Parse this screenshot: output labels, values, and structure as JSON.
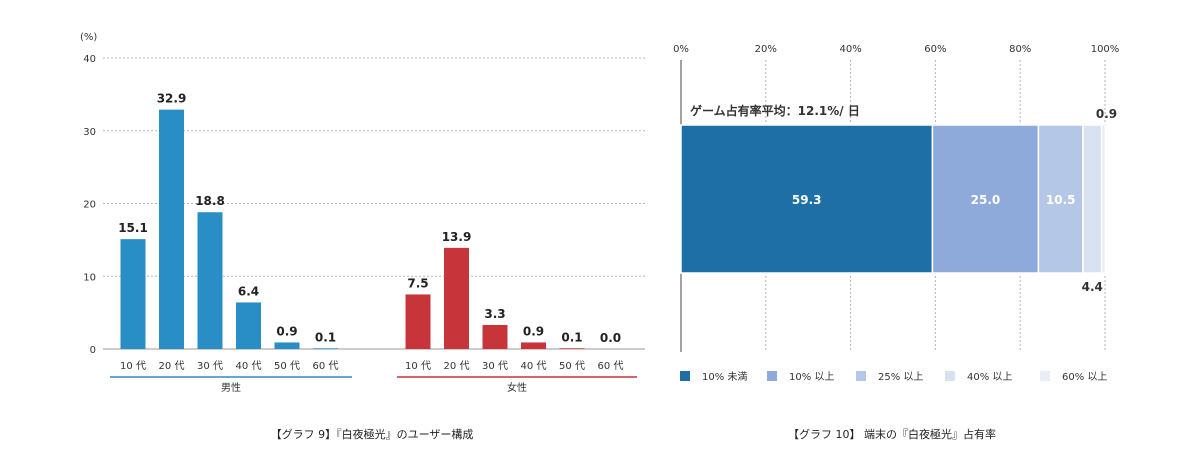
{
  "colors": {
    "male": "#2a8ec6",
    "female": "#c7353b",
    "segments": [
      "#1f6fa7",
      "#8eaadb",
      "#b4c7e7",
      "#d9e2f1",
      "#e8edf6"
    ]
  },
  "captions": {
    "left": "【グラフ 9】『白夜極光』のユーザー構成",
    "right": "【グラフ 10】 端末の『白夜極光』占有率"
  },
  "chart_data": [
    {
      "type": "bar",
      "unit_label": "(%)",
      "ylim": [
        0,
        40
      ],
      "yticks": [
        "0",
        "10",
        "20",
        "30",
        "40"
      ],
      "grid": true,
      "categories": [
        "10 代",
        "20 代",
        "30 代",
        "40 代",
        "50 代",
        "60 代"
      ],
      "series": [
        {
          "name": "男性",
          "values": [
            15.1,
            32.9,
            18.8,
            6.4,
            0.9,
            0.1
          ],
          "value_labels": [
            "15.1",
            "32.9",
            "18.8",
            "6.4",
            "0.9",
            "0.1"
          ]
        },
        {
          "name": "女性",
          "values": [
            7.5,
            13.9,
            3.3,
            0.9,
            0.1,
            0.0
          ],
          "value_labels": [
            "7.5",
            "13.9",
            "3.3",
            "0.9",
            "0.1",
            "0.0"
          ]
        }
      ]
    },
    {
      "type": "bar",
      "orientation": "horizontal-stacked",
      "xlim": [
        0,
        100
      ],
      "xticks": [
        "0%",
        "20%",
        "40%",
        "60%",
        "80%",
        "100%"
      ],
      "grid": true,
      "annotation": "ゲーム占有率平均：12.1%/ 日",
      "legend_position": "bottom",
      "series": [
        {
          "name": "10% 未満",
          "value": 59.3,
          "label": "59.3"
        },
        {
          "name": "10% 以上",
          "value": 25.0,
          "label": "25.0"
        },
        {
          "name": "25% 以上",
          "value": 10.5,
          "label": "10.5"
        },
        {
          "name": "40% 以上",
          "value": 4.4,
          "label": "4.4"
        },
        {
          "name": "60% 以上",
          "value": 0.9,
          "label": "0.9"
        }
      ]
    }
  ]
}
